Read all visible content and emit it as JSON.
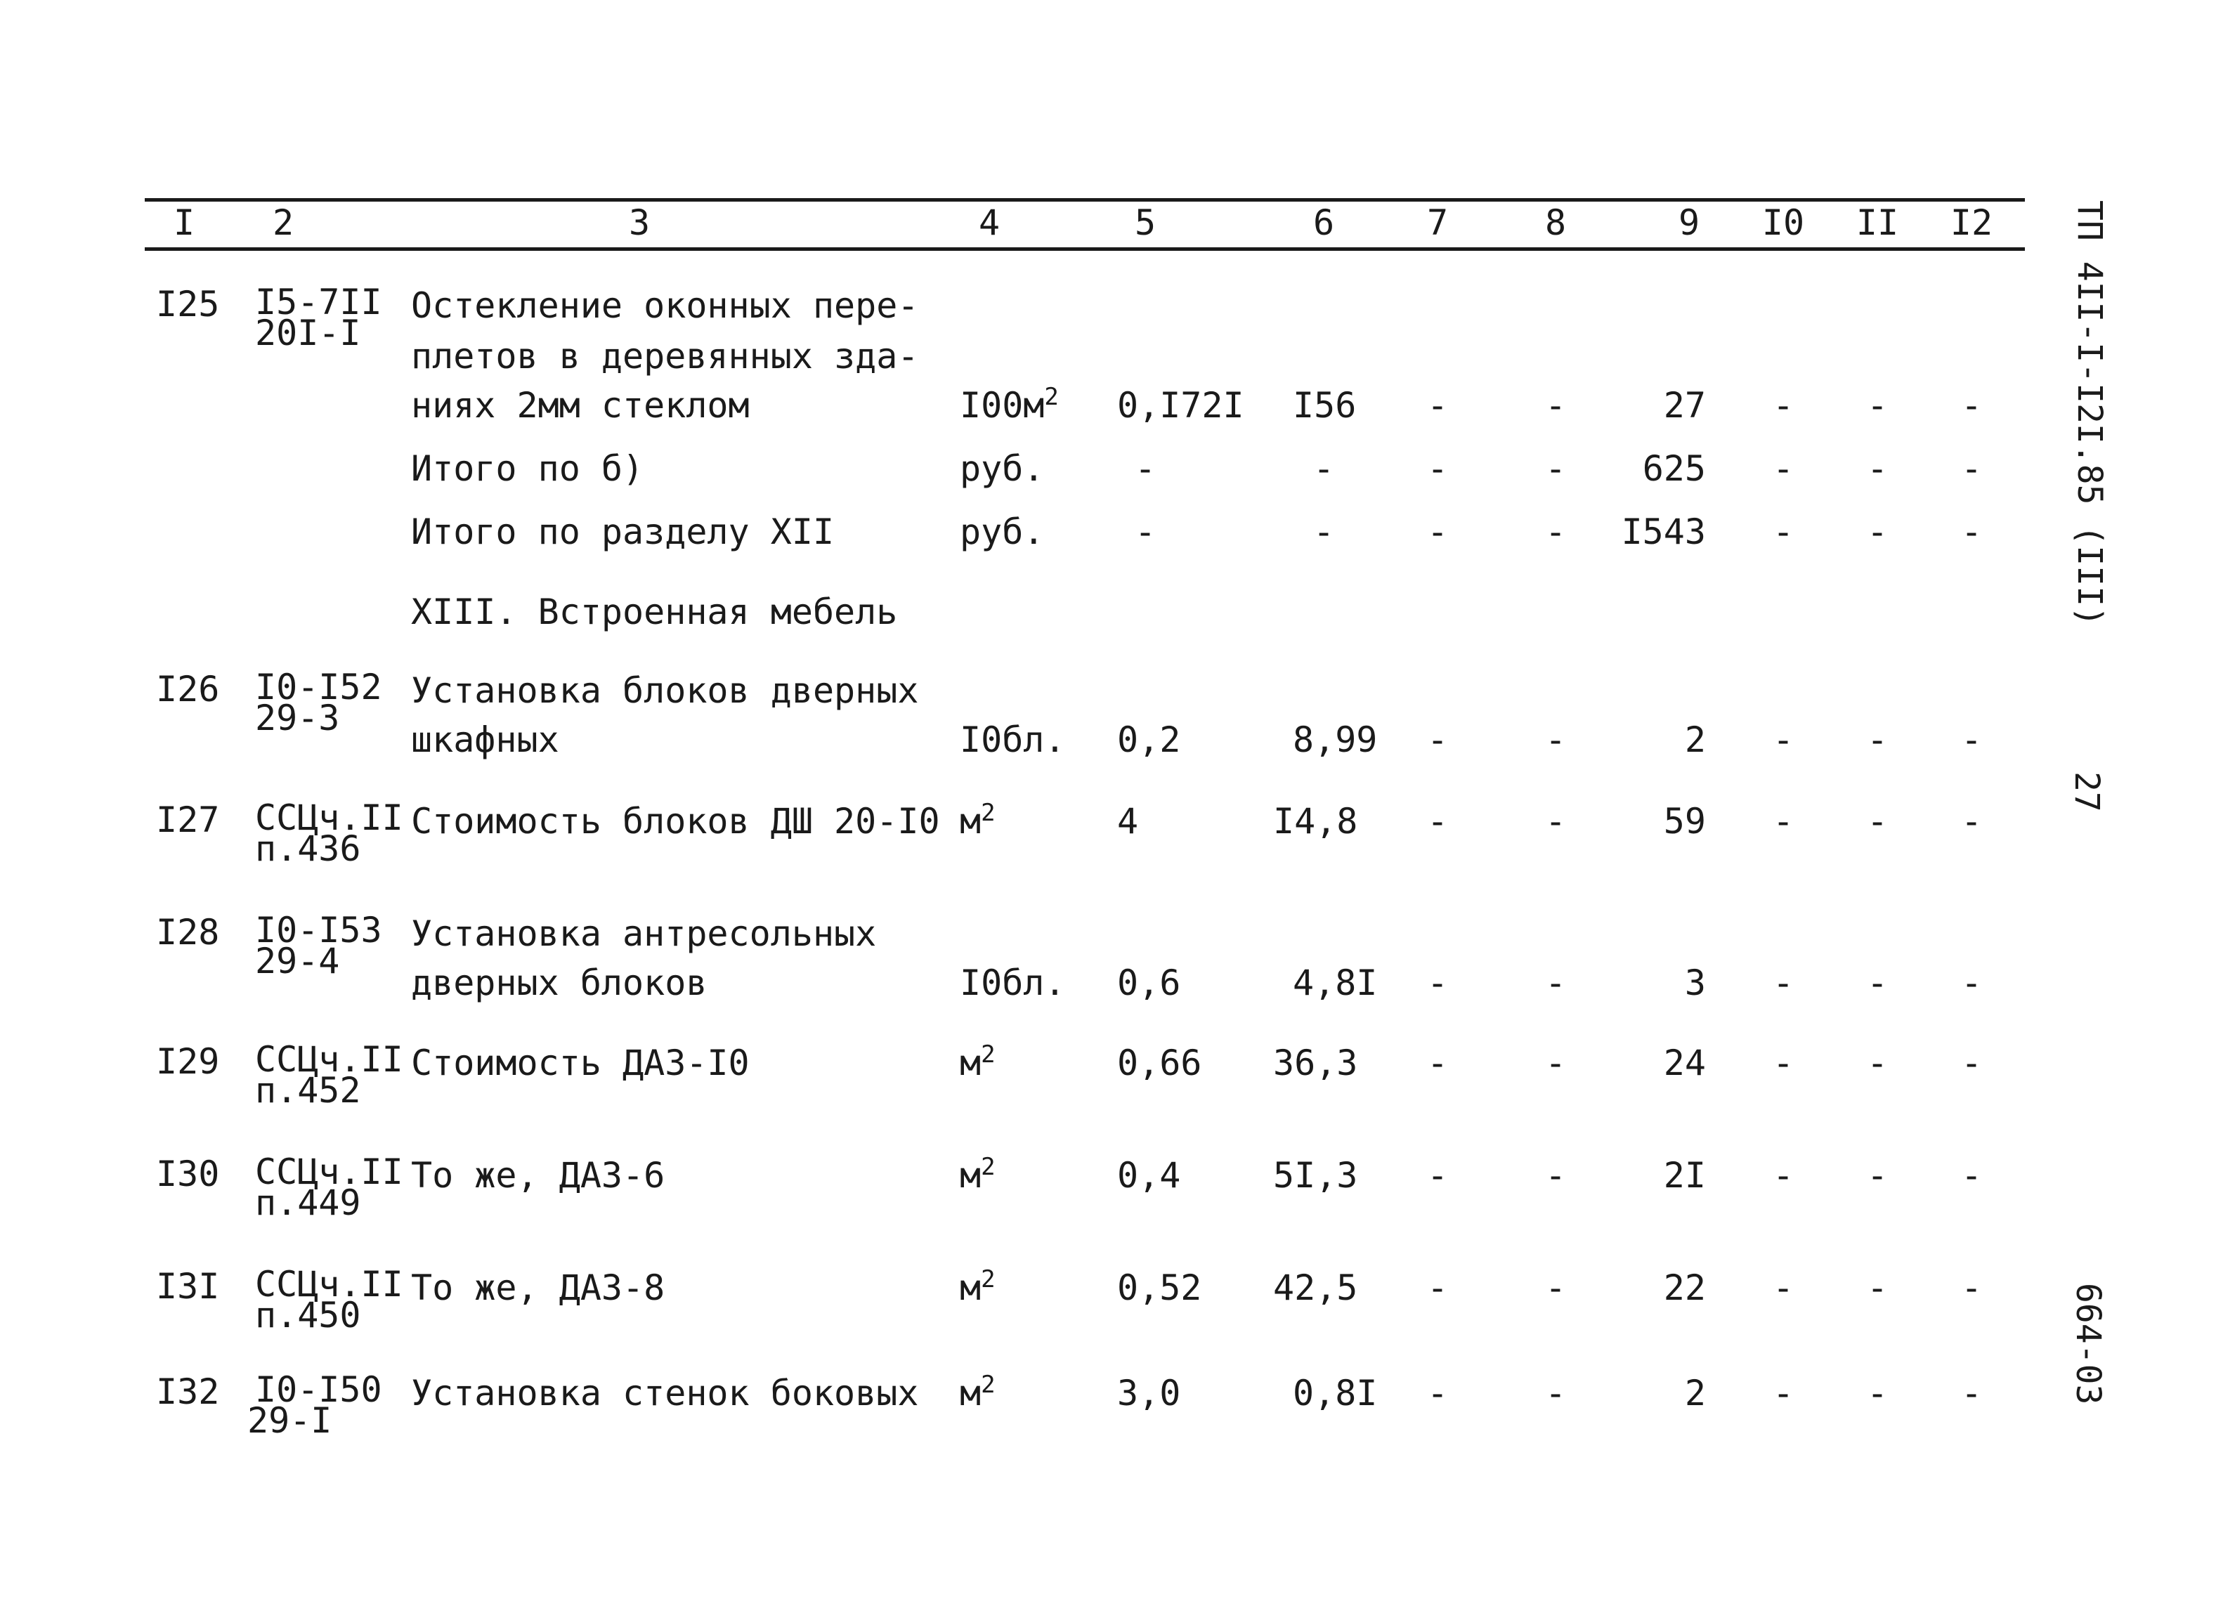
{
  "columns": [
    "I",
    "2",
    "3",
    "4",
    "5",
    "6",
    "7",
    "8",
    "9",
    "I0",
    "II",
    "I2"
  ],
  "rows": [
    {
      "num": "I25",
      "code": [
        "I5-7II",
        "20I-I"
      ],
      "text": [
        "Остекление оконных пере-",
        "плетов в деревянных зда-",
        "ниях 2мм стеклом"
      ],
      "unit": "I00м",
      "unit_sup": "2",
      "c5": "0,I72I",
      "c6": "I56",
      "c7": "-",
      "c8": "-",
      "c9": "27",
      "c10": "-",
      "c11": "-",
      "c12": "-"
    },
    {
      "text": [
        "Итого по б)"
      ],
      "unit": "руб.",
      "c5": "-",
      "c6": "-",
      "c7": "-",
      "c8": "-",
      "c9": "625",
      "c10": "-",
      "c11": "-",
      "c12": "-"
    },
    {
      "text": [
        "Итого по разделу XII"
      ],
      "unit": "руб.",
      "c5": "-",
      "c6": "-",
      "c7": "-",
      "c8": "-",
      "c9": "I543",
      "c10": "-",
      "c11": "-",
      "c12": "-"
    },
    {
      "text": [
        "XIII. Встроенная мебель"
      ]
    },
    {
      "num": "I26",
      "code": [
        "I0-I52",
        "29-3"
      ],
      "text": [
        "Установка блоков дверных",
        "шкафных"
      ],
      "unit": "I0бл.",
      "c5": "0,2",
      "c6": "8,99",
      "c7": "-",
      "c8": "-",
      "c9": "2",
      "c10": "-",
      "c11": "-",
      "c12": "-"
    },
    {
      "num": "I27",
      "code": [
        "ССЦч.II",
        "п.436"
      ],
      "text": [
        "Стоимость блоков ДШ 20-I0"
      ],
      "unit": "м",
      "unit_sup": "2",
      "c5": "4",
      "c6": "I4,8",
      "c7": "-",
      "c8": "-",
      "c9": "59",
      "c10": "-",
      "c11": "-",
      "c12": "-"
    },
    {
      "num": "I28",
      "code": [
        "I0-I53",
        "29-4"
      ],
      "text": [
        "Установка антресольных",
        "дверных блоков"
      ],
      "unit": "I0бл.",
      "c5": "0,6",
      "c6": "4,8I",
      "c7": "-",
      "c8": "-",
      "c9": "3",
      "c10": "-",
      "c11": "-",
      "c12": "-"
    },
    {
      "num": "I29",
      "code": [
        "ССЦч.II",
        "п.452"
      ],
      "text": [
        "Стоимость ДАЗ-I0"
      ],
      "unit": "м",
      "unit_sup": "2",
      "c5": "0,66",
      "c6": "36,3",
      "c7": "-",
      "c8": "-",
      "c9": "24",
      "c10": "-",
      "c11": "-",
      "c12": "-"
    },
    {
      "num": "I30",
      "code": [
        "ССЦч.II",
        "п.449"
      ],
      "text": [
        "То же, ДАЗ-6"
      ],
      "unit": "м",
      "unit_sup": "2",
      "c5": "0,4",
      "c6": "5I,3",
      "c7": "-",
      "c8": "-",
      "c9": "2I",
      "c10": "-",
      "c11": "-",
      "c12": "-"
    },
    {
      "num": "I3I",
      "code": [
        "ССЦч.II",
        "п.450"
      ],
      "text": [
        "То же, ДАЗ-8"
      ],
      "unit": "м",
      "unit_sup": "2",
      "c5": "0,52",
      "c6": "42,5",
      "c7": "-",
      "c8": "-",
      "c9": "22",
      "c10": "-",
      "c11": "-",
      "c12": "-"
    },
    {
      "num": "I32",
      "code": [
        "I0-I50",
        "29-I"
      ],
      "text": [
        "Установка стенок боковых"
      ],
      "unit": "м",
      "unit_sup": "2",
      "c5": "3,0",
      "c6": "0,8I",
      "c7": "-",
      "c8": "-",
      "c9": "2",
      "c10": "-",
      "c11": "-",
      "c12": "-"
    }
  ],
  "side_doc_code": "ТП 4II-I-I2I.85 (III)",
  "side_page_number": "27",
  "side_sheet_code": "664-03"
}
